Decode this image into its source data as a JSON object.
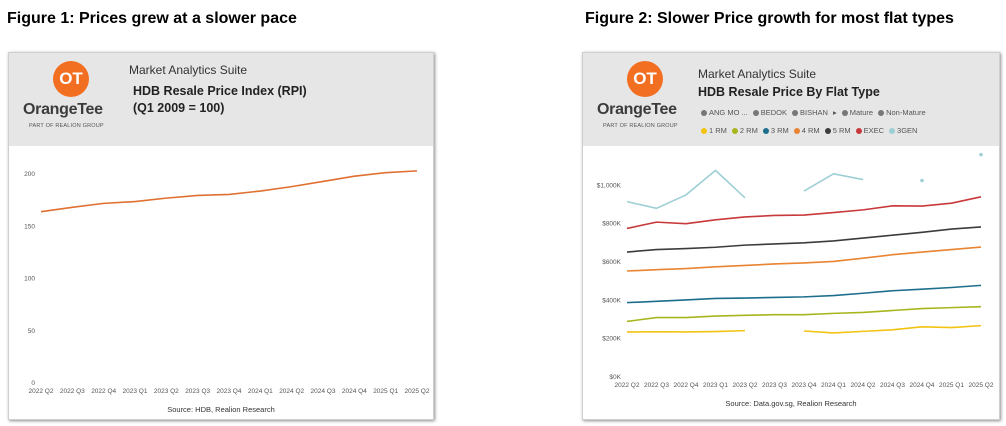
{
  "figures": {
    "fig1_title": "Figure 1: Prices grew at a slower pace",
    "fig2_title": "Figure 2: Slower Price growth for most flat types"
  },
  "brand": {
    "logo_mark": "OT",
    "logo_word": "OrangeTee",
    "logo_sub": "PART OF REALION GROUP",
    "logo_color": "#f26f21"
  },
  "suite_label": "Market Analytics Suite",
  "chart_data": [
    {
      "type": "line",
      "title": "HDB Resale Price Index (RPI)",
      "subtitle": "(Q1 2009 = 100)",
      "source": "Source: HDB, Realion Research",
      "categories": [
        "2022 Q2",
        "2022 Q3",
        "2022 Q4",
        "2023 Q1",
        "2023 Q2",
        "2023 Q3",
        "2023 Q4",
        "2024 Q1",
        "2024 Q2",
        "2024 Q3",
        "2024 Q4",
        "2025 Q1",
        "2025 Q2"
      ],
      "ylim": [
        0,
        200
      ],
      "yticks": [
        0,
        50,
        100,
        150,
        200
      ],
      "grid": false,
      "series": [
        {
          "values": [
            163.9,
            168.1,
            171.9,
            173.6,
            176.9,
            179.5,
            180.4,
            183.7,
            187.9,
            192.9,
            197.9,
            201.3,
            203.0
          ],
          "color": "#e07032"
        }
      ]
    },
    {
      "type": "line",
      "title": "HDB Resale Price By Flat Type",
      "source": "Source: Data.gov.sg, Realion Research",
      "legend_top": [
        {
          "label": "ANG MO ...",
          "color": "#777777"
        },
        {
          "label": "BEDOK",
          "color": "#777777"
        },
        {
          "label": "BISHAN",
          "color": "#777777"
        },
        {
          "label": "Mature",
          "color": "#777777"
        },
        {
          "label": "Non-Mature",
          "color": "#777777"
        }
      ],
      "legend_more_arrow": "▸",
      "legend_placement": "top",
      "categories": [
        "2022 Q2",
        "2022 Q3",
        "2022 Q4",
        "2023 Q1",
        "2023 Q2",
        "2023 Q3",
        "2023 Q4",
        "2024 Q1",
        "2024 Q2",
        "2024 Q3",
        "2024 Q4",
        "2025 Q1",
        "2025 Q2"
      ],
      "ylim": [
        0,
        1200000
      ],
      "yticks": [
        0,
        200000,
        400000,
        600000,
        800000,
        1000000
      ],
      "ytick_labels": [
        "$0K",
        "$200K",
        "$400K",
        "$600K",
        "$800K",
        "$1,000K"
      ],
      "grid": false,
      "series": [
        {
          "name": "1 RM",
          "color": "#f2c313",
          "values": [
            235000,
            236000,
            235000,
            237000,
            242000,
            null,
            240000,
            230000,
            238000,
            246000,
            262000,
            258000,
            268000
          ]
        },
        {
          "name": "2 RM",
          "color": "#a7b61d",
          "values": [
            290000,
            310000,
            310000,
            318000,
            322000,
            325000,
            325000,
            332000,
            337000,
            347000,
            357000,
            362000,
            367000
          ]
        },
        {
          "name": "3 RM",
          "color": "#1c6e8c",
          "values": [
            388000,
            395000,
            402000,
            410000,
            412000,
            415000,
            418000,
            425000,
            437000,
            450000,
            458000,
            467000,
            478000
          ]
        },
        {
          "name": "4 RM",
          "color": "#e88432",
          "values": [
            553000,
            560000,
            566000,
            575000,
            582000,
            590000,
            595000,
            603000,
            620000,
            638000,
            652000,
            665000,
            678000
          ]
        },
        {
          "name": "5 RM",
          "color": "#3c3c3c",
          "values": [
            652000,
            665000,
            670000,
            677000,
            688000,
            694000,
            700000,
            710000,
            725000,
            740000,
            755000,
            772000,
            783000
          ]
        },
        {
          "name": "EXEC",
          "color": "#c8393b",
          "values": [
            775000,
            808000,
            800000,
            820000,
            835000,
            843000,
            845000,
            858000,
            872000,
            893000,
            892000,
            907000,
            940000
          ]
        },
        {
          "name": "3GEN",
          "color": "#9ecfd6",
          "values": [
            915000,
            880000,
            950000,
            1078000,
            935000,
            null,
            970000,
            1060000,
            1030000,
            null,
            1025000,
            null,
            1160000
          ]
        }
      ]
    }
  ]
}
